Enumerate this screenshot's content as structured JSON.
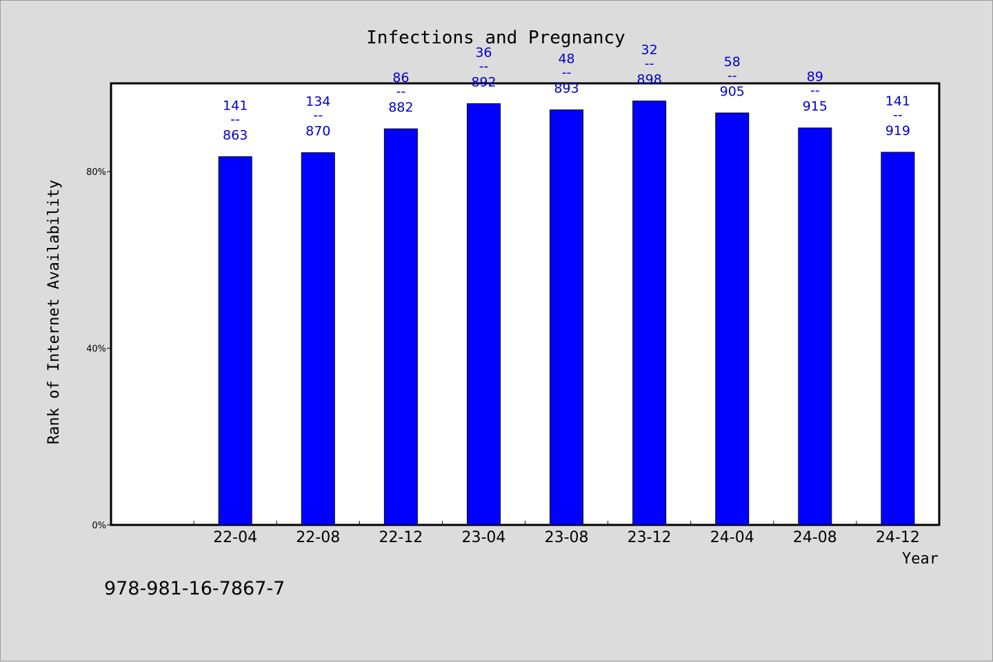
{
  "chart_data": {
    "type": "bar",
    "title": "Infections and Pregnancy",
    "xlabel": "Year",
    "ylabel": "Rank of Internet Availability",
    "categories": [
      "22-04",
      "22-08",
      "22-12",
      "23-04",
      "23-08",
      "23-12",
      "24-04",
      "24-08",
      "24-12"
    ],
    "values": [
      83.4,
      84.3,
      89.7,
      95.4,
      94.0,
      96.0,
      93.3,
      89.9,
      84.4
    ],
    "ranks": [
      141,
      134,
      86,
      36,
      48,
      32,
      58,
      89,
      141
    ],
    "totals": [
      863,
      870,
      882,
      892,
      893,
      898,
      905,
      915,
      919
    ],
    "label_separator": "--",
    "yticks": [
      "0%",
      "40%",
      "80%"
    ],
    "ytick_values": [
      0,
      40,
      80
    ],
    "ylim": [
      0,
      100
    ],
    "grid": false,
    "legend": "none",
    "bar_color": "#0000ff",
    "label_color": "#0000cc",
    "plot_background": "#ffffff",
    "page_background": "#dcdcdc"
  },
  "footer": {
    "isbn": "978-981-16-7867-7"
  }
}
